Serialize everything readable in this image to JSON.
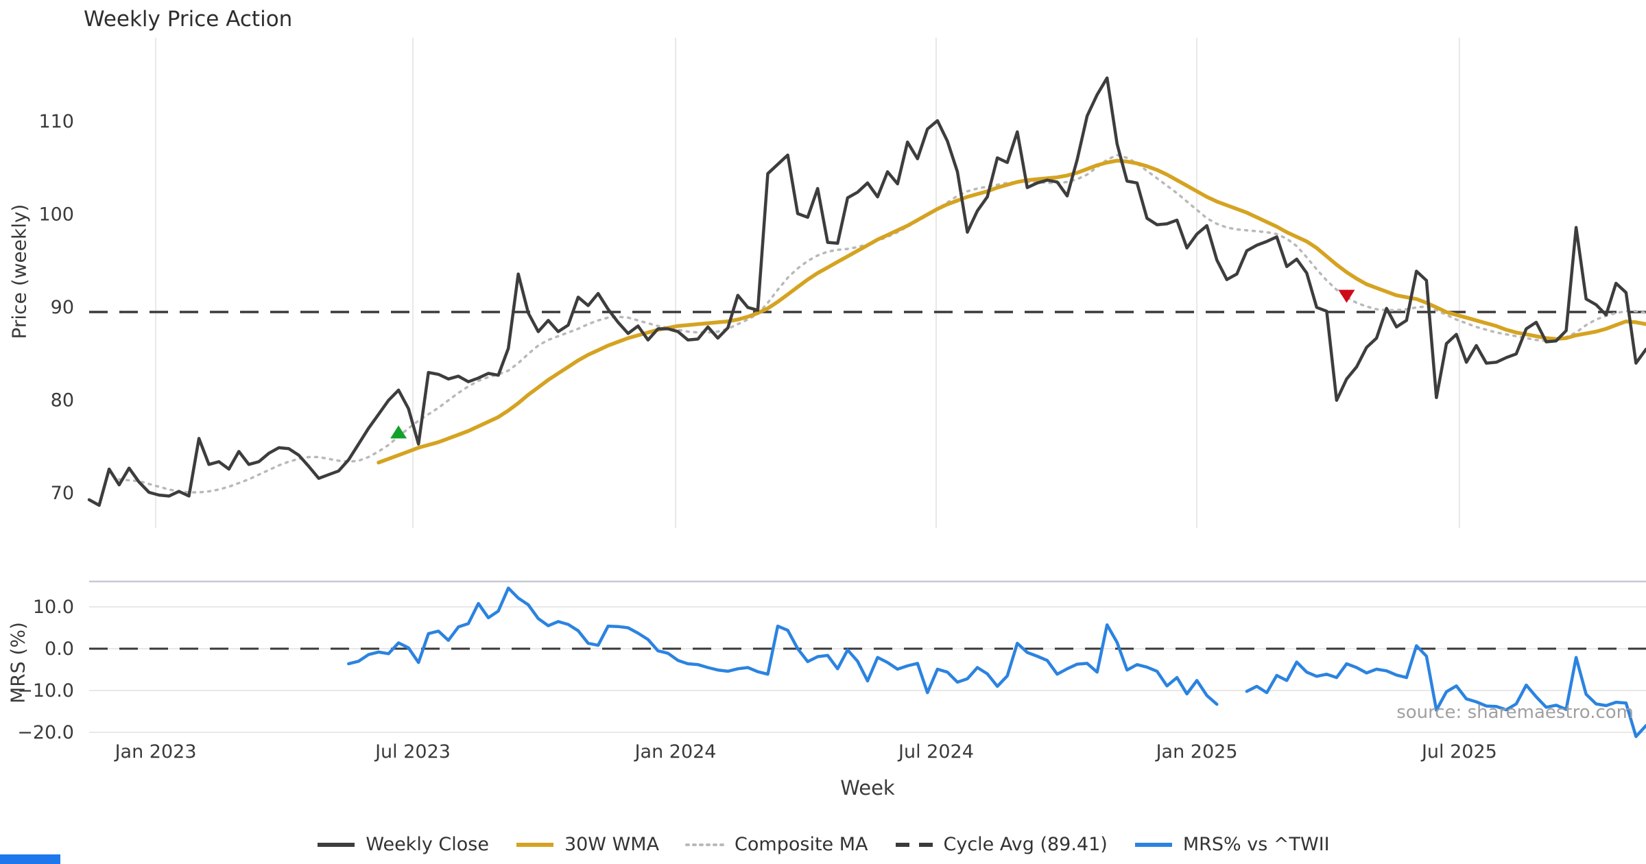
{
  "chart_data": {
    "type": "line",
    "title": "Weekly Price Action",
    "xlabel": "Week",
    "source_note": "source: sharemaestro.com",
    "x_weeks_total": 156,
    "x_ticks": [
      {
        "week": 6.67,
        "label": "Jan 2023"
      },
      {
        "week": 32.44,
        "label": "Jul 2023"
      },
      {
        "week": 58.76,
        "label": "Jan 2024"
      },
      {
        "week": 84.87,
        "label": "Jul 2024"
      },
      {
        "week": 110.99,
        "label": "Jan 2025"
      },
      {
        "week": 137.3,
        "label": "Jul 2025"
      }
    ],
    "panels": [
      {
        "name": "price",
        "ylabel": "Price (weekly)",
        "ylim": [
          66.16,
          118.93
        ],
        "grid": "vertical",
        "yticks": [
          {
            "value": 110,
            "label": "110"
          },
          {
            "value": 100,
            "label": "100"
          },
          {
            "value": 90,
            "label": "90"
          },
          {
            "value": 80,
            "label": "80"
          },
          {
            "value": 70,
            "label": "70"
          }
        ],
        "hline": {
          "value": 89.41,
          "style": "dashed",
          "color": "#3a3a3a"
        },
        "series": [
          {
            "name": "Composite MA",
            "color": "#b9b9b9",
            "style": "dotted",
            "width": 3.5,
            "values": [
              null,
              null,
              null,
              71.4,
              71.3,
              71.2,
              70.9,
              70.6,
              70.3,
              70.1,
              70.0,
              70.0,
              70.1,
              70.3,
              70.6,
              71.0,
              71.4,
              71.9,
              72.4,
              72.9,
              73.3,
              73.6,
              73.8,
              73.8,
              73.6,
              73.4,
              73.3,
              73.4,
              73.8,
              74.4,
              75.1,
              76.0,
              76.9,
              77.7,
              78.4,
              79.1,
              79.9,
              80.7,
              81.4,
              82.0,
              82.4,
              82.7,
              83.1,
              83.9,
              84.9,
              85.8,
              86.4,
              86.8,
              87.2,
              87.6,
              88.1,
              88.5,
              88.8,
              88.9,
              88.8,
              88.5,
              88.2,
              87.9,
              87.7,
              87.5,
              87.3,
              87.2,
              87.2,
              87.3,
              87.6,
              88.1,
              88.6,
              89.2,
              90.4,
              91.8,
              93.1,
              94.1,
              94.9,
              95.5,
              95.9,
              96.1,
              96.2,
              96.4,
              96.7,
              97.1,
              97.5,
              98.0,
              98.6,
              99.2,
              99.8,
              100.5,
              101.2,
              101.9,
              102.4,
              102.7,
              102.9,
              103.1,
              103.3,
              103.4,
              103.4,
              103.4,
              103.3,
              103.3,
              103.4,
              103.7,
              104.2,
              105.0,
              105.8,
              106.3,
              106.0,
              105.4,
              104.6,
              103.8,
              103.0,
              102.2,
              101.3,
              100.4,
              99.5,
              98.9,
              98.5,
              98.3,
              98.2,
              98.1,
              98.0,
              97.8,
              97.3,
              96.5,
              95.3,
              94.0,
              92.8,
              91.8,
              91.0,
              90.4,
              90.0,
              89.7,
              89.6,
              89.6,
              89.7,
              89.9,
              90.0,
              89.6,
              89.1,
              88.6,
              88.2,
              87.8,
              87.5,
              87.2,
              87.0,
              86.8,
              86.6,
              86.4,
              86.3,
              86.4,
              86.7,
              87.2,
              88.0,
              88.6,
              89.0,
              89.3,
              89.5,
              89.5,
              89.3,
              89.0
            ]
          },
          {
            "name": "30W WMA",
            "color": "#d5a321",
            "style": "solid",
            "width": 5.5,
            "values": [
              null,
              null,
              null,
              null,
              null,
              null,
              null,
              null,
              null,
              null,
              null,
              null,
              null,
              null,
              null,
              null,
              null,
              null,
              null,
              null,
              null,
              null,
              null,
              null,
              null,
              null,
              null,
              null,
              null,
              73.2,
              73.6,
              74.0,
              74.4,
              74.8,
              75.1,
              75.4,
              75.8,
              76.2,
              76.6,
              77.1,
              77.6,
              78.1,
              78.8,
              79.6,
              80.5,
              81.3,
              82.1,
              82.8,
              83.5,
              84.2,
              84.8,
              85.3,
              85.8,
              86.2,
              86.6,
              86.9,
              87.2,
              87.5,
              87.7,
              87.9,
              88.0,
              88.1,
              88.2,
              88.3,
              88.4,
              88.6,
              88.9,
              89.3,
              89.8,
              90.5,
              91.3,
              92.1,
              92.9,
              93.6,
              94.2,
              94.8,
              95.4,
              96.0,
              96.6,
              97.2,
              97.7,
              98.2,
              98.7,
              99.3,
              99.9,
              100.5,
              101.0,
              101.4,
              101.8,
              102.1,
              102.4,
              102.8,
              103.1,
              103.4,
              103.6,
              103.7,
              103.8,
              103.9,
              104.1,
              104.4,
              104.8,
              105.2,
              105.5,
              105.7,
              105.6,
              105.4,
              105.1,
              104.7,
              104.2,
              103.6,
              103.0,
              102.4,
              101.8,
              101.3,
              100.9,
              100.5,
              100.1,
              99.6,
              99.1,
              98.6,
              98.0,
              97.5,
              97.0,
              96.3,
              95.4,
              94.5,
              93.7,
              93.0,
              92.4,
              92.0,
              91.6,
              91.2,
              91.0,
              90.8,
              90.4,
              89.9,
              89.4,
              89.1,
              88.8,
              88.5,
              88.2,
              87.9,
              87.5,
              87.2,
              87.0,
              86.8,
              86.6,
              86.5,
              86.6,
              86.9,
              87.1,
              87.3,
              87.6,
              88.0,
              88.4,
              88.3,
              88.1
            ]
          },
          {
            "name": "Weekly Close",
            "color": "#3d3d3d",
            "style": "solid",
            "width": 4.5,
            "values": [
              69.2,
              68.6,
              72.5,
              70.8,
              72.6,
              71.1,
              70.0,
              69.7,
              69.6,
              70.1,
              69.6,
              75.8,
              73.0,
              73.3,
              72.5,
              74.4,
              73.0,
              73.3,
              74.2,
              74.8,
              74.7,
              74.0,
              72.8,
              71.5,
              71.9,
              72.3,
              73.5,
              75.2,
              76.9,
              78.4,
              79.9,
              81.0,
              79.0,
              75.2,
              82.9,
              82.7,
              82.2,
              82.5,
              81.9,
              82.3,
              82.8,
              82.6,
              85.5,
              93.5,
              89.3,
              87.3,
              88.5,
              87.3,
              88.0,
              91.0,
              90.1,
              91.4,
              89.7,
              88.3,
              87.1,
              87.9,
              86.4,
              87.6,
              87.6,
              87.3,
              86.4,
              86.5,
              87.8,
              86.6,
              87.7,
              91.2,
              89.9,
              89.6,
              104.3,
              105.3,
              106.3,
              100.0,
              99.6,
              102.7,
              96.9,
              96.8,
              101.7,
              102.3,
              103.3,
              101.8,
              104.5,
              103.2,
              107.7,
              105.9,
              109.1,
              110.0,
              107.8,
              104.5,
              98.0,
              100.3,
              101.8,
              106.0,
              105.5,
              108.8,
              102.8,
              103.3,
              103.6,
              103.4,
              101.9,
              105.8,
              110.5,
              112.8,
              114.6,
              107.5,
              103.5,
              103.3,
              99.5,
              98.8,
              98.9,
              99.3,
              96.3,
              97.8,
              98.7,
              95.0,
              92.9,
              93.5,
              96.0,
              96.6,
              97.0,
              97.5,
              94.3,
              95.1,
              93.6,
              89.9,
              89.5,
              79.9,
              82.2,
              83.5,
              85.6,
              86.6,
              89.8,
              87.8,
              88.5,
              93.8,
              92.8,
              80.2,
              86.0,
              87.0,
              84.0,
              85.8,
              83.9,
              84.0,
              84.5,
              84.9,
              87.6,
              88.3,
              86.2,
              86.3,
              87.4,
              98.5,
              90.8,
              90.2,
              89.1,
              92.5,
              91.5,
              83.9,
              85.4
            ]
          }
        ],
        "markers": [
          {
            "shape": "triangle-up",
            "color": "#12a12b",
            "week": 31,
            "value": 76.5,
            "meaning": "buy-signal"
          },
          {
            "shape": "triangle-down",
            "color": "#cf0a18",
            "week": 126,
            "value": 91.1,
            "meaning": "sell-signal"
          }
        ]
      },
      {
        "name": "mrs",
        "ylabel": "MRS (%)",
        "ylim": [
          -21.64,
          16.07
        ],
        "grid": "horizontal",
        "top_spine": true,
        "yticks": [
          {
            "value": 10,
            "label": "10.0"
          },
          {
            "value": 0,
            "label": "0.0"
          },
          {
            "value": -10,
            "label": "−10.0"
          },
          {
            "value": -20,
            "label": "−20.0"
          }
        ],
        "hline": {
          "value": 0,
          "style": "dashed",
          "color": "#3a3a3a"
        },
        "series": [
          {
            "name": "MRS% vs ^TWII",
            "color": "#2b83e0",
            "style": "solid",
            "width": 4.5,
            "values": [
              null,
              null,
              null,
              null,
              null,
              null,
              null,
              null,
              null,
              null,
              null,
              null,
              null,
              null,
              null,
              null,
              null,
              null,
              null,
              null,
              null,
              null,
              null,
              null,
              null,
              null,
              -3.6,
              -3.0,
              -1.4,
              -0.8,
              -1.2,
              1.4,
              0.2,
              -3.3,
              3.6,
              4.2,
              2.0,
              5.2,
              6.0,
              10.8,
              7.4,
              9.0,
              14.5,
              12.1,
              10.5,
              7.2,
              5.5,
              6.5,
              5.8,
              4.3,
              1.3,
              0.8,
              5.4,
              5.3,
              5.0,
              3.7,
              2.2,
              -0.5,
              -1.1,
              -2.8,
              -3.6,
              -3.8,
              -4.5,
              -5.1,
              -5.4,
              -4.8,
              -4.5,
              -5.5,
              -6.1,
              5.4,
              4.4,
              0.0,
              -3.1,
              -1.9,
              -1.6,
              -4.8,
              -0.3,
              -3.0,
              -7.7,
              -2.1,
              -3.3,
              -4.9,
              -4.1,
              -3.5,
              -10.5,
              -4.9,
              -5.6,
              -8.0,
              -7.2,
              -4.5,
              -6.0,
              -9.0,
              -6.5,
              1.3,
              -0.9,
              -1.8,
              -2.8,
              -6.1,
              -4.8,
              -3.7,
              -3.5,
              -5.6,
              5.7,
              1.5,
              -5.1,
              -3.8,
              -4.4,
              -5.4,
              -8.9,
              -6.9,
              -10.8,
              -7.6,
              -11.2,
              -13.3,
              null,
              null,
              -10.2,
              -9.0,
              -10.5,
              -6.4,
              -7.6,
              -3.2,
              -5.6,
              -6.6,
              -6.1,
              -6.9,
              -3.6,
              -4.5,
              -5.8,
              -4.9,
              -5.3,
              -6.3,
              -6.9,
              0.7,
              -1.8,
              -14.7,
              -10.3,
              -8.9,
              -12.0,
              -12.7,
              -13.7,
              -13.8,
              -14.6,
              -13.2,
              -8.7,
              -11.5,
              -14.0,
              -13.5,
              -14.5,
              -2.1,
              -10.9,
              -13.2,
              -13.6,
              -12.8,
              -13.0,
              -21.0,
              -18.4
            ]
          }
        ]
      }
    ],
    "legend": [
      {
        "label": "Weekly Close",
        "color": "#3d3d3d",
        "style": "solid"
      },
      {
        "label": "30W WMA",
        "color": "#d5a321",
        "style": "solid"
      },
      {
        "label": "Composite MA",
        "color": "#b9b9b9",
        "style": "dotted"
      },
      {
        "label": "Cycle Avg (89.41)",
        "color": "#3a3a3a",
        "style": "dashed"
      },
      {
        "label": "MRS% vs ^TWII",
        "color": "#2b83e0",
        "style": "solid"
      }
    ],
    "colors": {
      "background": "#ffffff",
      "grid": "#e8e8e8",
      "spine": "#c4c9d2",
      "tick_text": "#3a3a3a",
      "corner_bar": "#1f78eb"
    }
  }
}
